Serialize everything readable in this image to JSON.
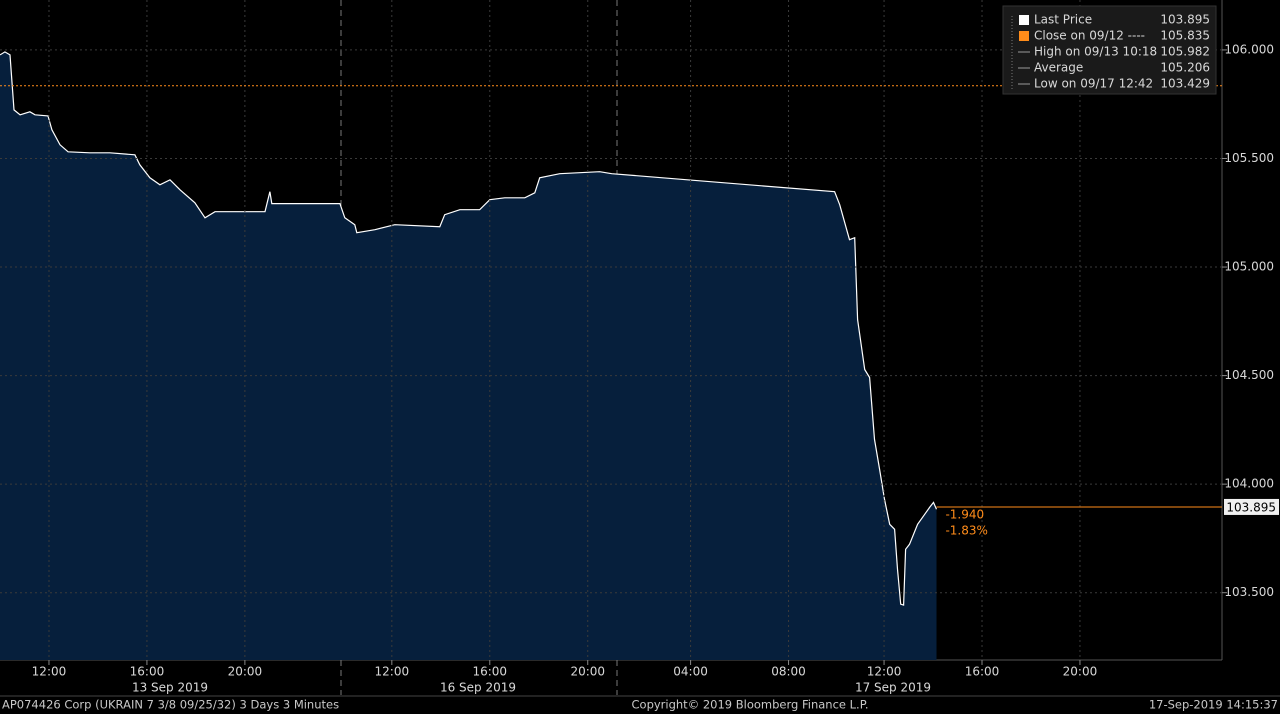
{
  "chart_data": {
    "type": "area",
    "series": [
      {
        "name": "Last Price",
        "color": "#ffffff",
        "fill": "#061f3c",
        "x": [
          0,
          0.2,
          0.41,
          0.57,
          0.82,
          1.22,
          1.43,
          1.96,
          2.12,
          2.45,
          2.78,
          3.67,
          4.49,
          5.51,
          5.71,
          6.12,
          6.53,
          6.94,
          7.35,
          7.96,
          8.37,
          8.78,
          10.82,
          11.02,
          11.1,
          13.88,
          14.08,
          14.49,
          14.57,
          15.31,
          16.12,
          17.96,
          18.16,
          18.78,
          19.59,
          20.0,
          20.61,
          21.43,
          21.84,
          22.04,
          22.86,
          24.49,
          24.98,
          34.08,
          34.29,
          34.69,
          34.9,
          35.02,
          35.31,
          35.51,
          35.71,
          35.92,
          36.12,
          36.33,
          36.53,
          36.65,
          36.78,
          36.9,
          36.98,
          37.14,
          37.47,
          37.76,
          37.96,
          38.12,
          38.24
        ],
        "values": [
          105.977,
          105.991,
          105.977,
          105.724,
          105.701,
          105.715,
          105.701,
          105.696,
          105.632,
          105.563,
          105.531,
          105.526,
          105.526,
          105.517,
          105.471,
          105.411,
          105.379,
          105.402,
          105.356,
          105.296,
          105.227,
          105.255,
          105.255,
          105.347,
          105.292,
          105.292,
          105.227,
          105.195,
          105.158,
          105.172,
          105.195,
          105.186,
          105.241,
          105.264,
          105.264,
          105.31,
          105.319,
          105.319,
          105.342,
          105.411,
          105.43,
          105.439,
          105.43,
          105.347,
          105.287,
          105.126,
          105.135,
          104.758,
          104.528,
          104.491,
          104.206,
          104.068,
          103.93,
          103.815,
          103.792,
          103.608,
          103.447,
          103.443,
          103.7,
          103.723,
          103.815,
          103.861,
          103.893,
          103.916,
          103.884
        ]
      }
    ],
    "xlim": [
      0,
      49.9
    ],
    "xticks": [
      {
        "value": 2,
        "label": "12:00"
      },
      {
        "value": 6,
        "label": "16:00"
      },
      {
        "value": 10,
        "label": "20:00"
      },
      {
        "value": 16,
        "label": "12:00"
      },
      {
        "value": 20,
        "label": "16:00"
      },
      {
        "value": 24,
        "label": "20:00"
      },
      {
        "value": 28.2,
        "label": "04:00"
      },
      {
        "value": 32.2,
        "label": "08:00"
      },
      {
        "value": 36.1,
        "label": "12:00"
      },
      {
        "value": 40.1,
        "label": "16:00"
      },
      {
        "value": 44.1,
        "label": "20:00"
      }
    ],
    "date_labels": [
      "13 Sep 2019",
      "16 Sep 2019",
      "17 Sep 2019"
    ],
    "ylim": [
      103.19,
      106.23
    ],
    "yticks": [
      {
        "value": 103.5,
        "label": "103.500"
      },
      {
        "value": 104,
        "label": "104.000"
      },
      {
        "value": 104.5,
        "label": "104.500"
      },
      {
        "value": 105,
        "label": "105.000"
      },
      {
        "value": 105.5,
        "label": "105.500"
      },
      {
        "value": 106,
        "label": "106.000"
      }
    ],
    "grid": true,
    "legend": [
      {
        "label": "Last Price",
        "value": 103.895
      },
      {
        "label": "Close on 09/12 ----",
        "value": 105.835
      },
      {
        "label": "High on 09/13 10:18",
        "value": 105.982
      },
      {
        "label": "Average",
        "value": 105.206
      },
      {
        "label": "Low on 09/17 12:42",
        "value": 103.429
      }
    ],
    "change": -1.94,
    "change_label": "-1.940",
    "change_pct": -1.83,
    "change_pct_label": "-1.83%",
    "footer_left": "AP074426 Corp (UKRAIN 7 3/8 09/25/32) 3 Days 3 Minutes",
    "footer_center": "Copyright© 2019 Bloomberg Finance L.P.",
    "footer_right": "17-Sep-2019 14:15:37"
  }
}
